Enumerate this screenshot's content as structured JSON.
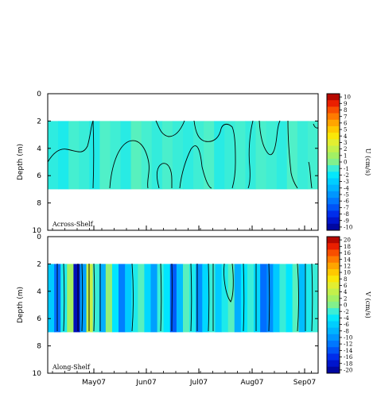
{
  "chart_data": [
    {
      "type": "heatmap",
      "panel_label": "Across-Shelf",
      "ylabel": "Depth (m)",
      "ylim": [
        10,
        0
      ],
      "yticks": [
        0,
        2,
        4,
        6,
        8,
        10
      ],
      "data_depth_range": [
        2,
        7
      ],
      "xticks": [
        "May07",
        "Jun07",
        "Jul07",
        "Aug07",
        "Sep07"
      ],
      "colorbar": {
        "label": "U (cm/s)",
        "range": [
          -10,
          10
        ],
        "ticks": [
          10,
          9,
          8,
          7,
          6,
          5,
          4,
          3,
          2,
          1,
          0,
          -1,
          -2,
          -3,
          -4,
          -5,
          -6,
          -7,
          -8,
          -9,
          -10
        ]
      },
      "columns": [
        -1.2,
        -1.5,
        -0.8,
        -1.0,
        -1.4,
        -0.6,
        -0.9,
        -1.3,
        -0.5,
        -0.8,
        -1.1,
        -0.7,
        -1.0,
        -1.2,
        -0.9,
        -0.6,
        -1.3,
        -1.0,
        -0.8,
        -1.1,
        -0.7,
        -0.9,
        -1.2,
        -0.6,
        -1.0,
        -0.8
      ]
    },
    {
      "type": "heatmap",
      "panel_label": "Along-Shelf",
      "ylabel": "Depth (m)",
      "ylim": [
        10,
        0
      ],
      "yticks": [
        0,
        2,
        4,
        6,
        8,
        10
      ],
      "data_depth_range": [
        2,
        7
      ],
      "xticks": [
        "May07",
        "Jun07",
        "Jul07",
        "Aug07",
        "Sep07"
      ],
      "colorbar": {
        "label": "V (cm/s)",
        "range": [
          -20,
          20
        ],
        "ticks": [
          20,
          18,
          16,
          14,
          12,
          10,
          8,
          6,
          4,
          2,
          0,
          -2,
          -4,
          -6,
          -8,
          -10,
          -12,
          -14,
          -16,
          -18,
          -20
        ]
      },
      "columns": [
        -6,
        -12,
        -3,
        2,
        -18,
        -9,
        4,
        -2,
        -8,
        1,
        -4,
        -11,
        -6,
        -3,
        -1,
        -5,
        -9,
        -2,
        -4,
        -13,
        -7,
        -1,
        -3,
        -10,
        -5,
        -2,
        -6,
        -3,
        -1,
        -8,
        -4,
        -2,
        -5,
        -12,
        -10,
        -6,
        -2,
        -4,
        -1,
        -7,
        -3,
        -2
      ]
    }
  ]
}
